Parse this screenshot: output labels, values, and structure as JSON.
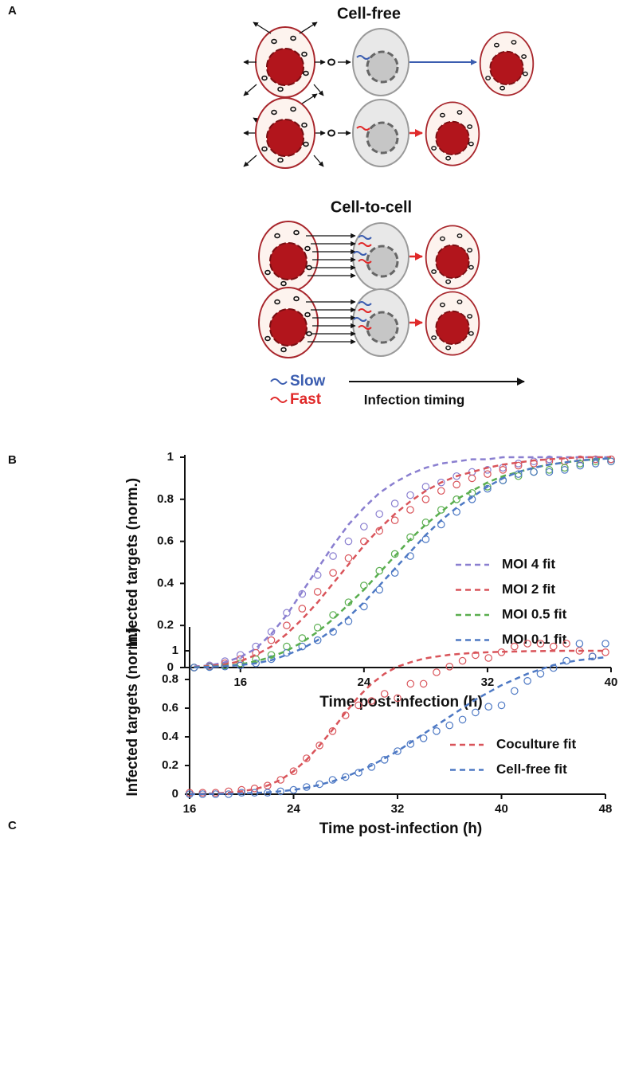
{
  "diagram": {
    "panel": "A",
    "cell_free_title": "Cell-free",
    "cell_to_cell_title": "Cell-to-cell",
    "slow": "Slow",
    "fast": "Fast",
    "timeline": "Infection timing"
  },
  "chart_data": [
    {
      "type": "line",
      "panel": "B",
      "x_label": "Time post-infection (h)",
      "y_label": "Infected targets (norm.)",
      "x": [
        13,
        14,
        15,
        16,
        17,
        18,
        19,
        20,
        21,
        22,
        23,
        24,
        25,
        26,
        27,
        28,
        29,
        30,
        31,
        32,
        33,
        34,
        35,
        36,
        37,
        38,
        39,
        40
      ],
      "xlim": [
        12.4,
        40
      ],
      "xticks": [
        16,
        24,
        32,
        40
      ],
      "ylim": [
        0,
        1
      ],
      "yticks": [
        0,
        0.2,
        0.4,
        0.6,
        0.8,
        1
      ],
      "legend": "center right",
      "series": [
        {
          "name": "MOI 4 fit",
          "color": "#8a7fd0",
          "values": [
            0.005,
            0.01,
            0.025,
            0.05,
            0.09,
            0.16,
            0.25,
            0.36,
            0.47,
            0.58,
            0.68,
            0.76,
            0.83,
            0.88,
            0.92,
            0.95,
            0.97,
            0.98,
            0.99,
            0.99,
            1,
            1,
            1,
            1,
            1,
            1,
            1,
            1
          ],
          "points": [
            0,
            0.01,
            0.03,
            0.06,
            0.1,
            0.17,
            0.26,
            0.35,
            0.44,
            0.53,
            0.6,
            0.67,
            0.73,
            0.78,
            0.82,
            0.86,
            0.88,
            0.91,
            0.93,
            0.94,
            0.95,
            0.97,
            0.98,
            0.99,
            0.98,
            0.99,
            0.99,
            0.99
          ]
        },
        {
          "name": "MOI 2 fit",
          "color": "#d9545a",
          "values": [
            0.003,
            0.007,
            0.015,
            0.03,
            0.06,
            0.1,
            0.16,
            0.23,
            0.31,
            0.4,
            0.49,
            0.58,
            0.66,
            0.73,
            0.79,
            0.84,
            0.88,
            0.91,
            0.93,
            0.95,
            0.965,
            0.975,
            0.985,
            0.99,
            0.995,
            1,
            1,
            1
          ],
          "points": [
            0,
            0.005,
            0.02,
            0.04,
            0.07,
            0.13,
            0.2,
            0.28,
            0.36,
            0.45,
            0.52,
            0.6,
            0.65,
            0.7,
            0.75,
            0.8,
            0.84,
            0.87,
            0.9,
            0.92,
            0.94,
            0.96,
            0.97,
            0.98,
            0.98,
            0.99,
            0.99,
            0.99
          ]
        },
        {
          "name": "MOI 0.5 fit",
          "color": "#5aae4f",
          "values": [
            0.002,
            0.004,
            0.008,
            0.015,
            0.03,
            0.05,
            0.08,
            0.12,
            0.17,
            0.23,
            0.3,
            0.37,
            0.45,
            0.53,
            0.61,
            0.68,
            0.74,
            0.8,
            0.84,
            0.88,
            0.91,
            0.93,
            0.95,
            0.965,
            0.975,
            0.985,
            0.99,
            0.995
          ],
          "points": [
            0,
            0.003,
            0.01,
            0.02,
            0.04,
            0.06,
            0.1,
            0.14,
            0.19,
            0.25,
            0.31,
            0.39,
            0.46,
            0.54,
            0.62,
            0.69,
            0.75,
            0.8,
            0.83,
            0.86,
            0.89,
            0.91,
            0.93,
            0.94,
            0.95,
            0.97,
            0.98,
            0.98
          ]
        },
        {
          "name": "MOI 0.1 fit",
          "color": "#4e79c4",
          "values": [
            0.001,
            0.003,
            0.006,
            0.012,
            0.02,
            0.035,
            0.06,
            0.09,
            0.13,
            0.18,
            0.24,
            0.31,
            0.39,
            0.47,
            0.55,
            0.63,
            0.7,
            0.76,
            0.81,
            0.86,
            0.9,
            0.93,
            0.95,
            0.965,
            0.975,
            0.985,
            0.99,
            0.995
          ],
          "points": [
            0,
            0.002,
            0.005,
            0.01,
            0.02,
            0.04,
            0.07,
            0.1,
            0.13,
            0.17,
            0.22,
            0.29,
            0.37,
            0.45,
            0.53,
            0.61,
            0.68,
            0.74,
            0.8,
            0.85,
            0.89,
            0.92,
            0.93,
            0.93,
            0.94,
            0.96,
            0.97,
            0.98
          ]
        }
      ]
    },
    {
      "type": "line",
      "panel": "C",
      "x_label": "Time post-infection (h)",
      "y_label": "Infected targets (norm.)",
      "x": [
        16,
        17,
        18,
        19,
        20,
        21,
        22,
        23,
        24,
        25,
        26,
        27,
        28,
        29,
        30,
        31,
        32,
        33,
        34,
        35,
        36,
        37,
        38,
        39,
        40,
        41,
        42,
        43,
        44,
        45,
        46,
        47,
        48
      ],
      "xlim": [
        16,
        48
      ],
      "xticks": [
        16,
        24,
        32,
        40,
        48
      ],
      "ylim": [
        0,
        1.15
      ],
      "yticks": [
        0,
        0.2,
        0.4,
        0.6,
        0.8,
        1
      ],
      "legend": "lower right",
      "series": [
        {
          "name": "Coculture fit",
          "color": "#d9545a",
          "values": [
            0.002,
            0.003,
            0.005,
            0.01,
            0.02,
            0.035,
            0.06,
            0.1,
            0.16,
            0.24,
            0.34,
            0.45,
            0.57,
            0.68,
            0.77,
            0.84,
            0.89,
            0.92,
            0.945,
            0.96,
            0.972,
            0.98,
            0.986,
            0.99,
            0.993,
            0.995,
            0.997,
            0.998,
            0.999,
            1,
            1,
            1,
            1
          ],
          "points": [
            0.01,
            0.01,
            0.01,
            0.02,
            0.03,
            0.04,
            0.06,
            0.1,
            0.16,
            0.25,
            0.34,
            0.44,
            0.55,
            0.62,
            0.65,
            0.7,
            0.67,
            0.77,
            0.77,
            0.85,
            0.89,
            0.93,
            0.97,
            0.95,
            0.99,
            1.03,
            1.05,
            1.05,
            1.03,
            1.05,
            1,
            0.96,
            0.99
          ]
        },
        {
          "name": "Cell-free fit",
          "color": "#4e79c4",
          "values": [
            0,
            0.001,
            0.002,
            0.003,
            0.005,
            0.008,
            0.013,
            0.02,
            0.03,
            0.045,
            0.065,
            0.09,
            0.12,
            0.16,
            0.2,
            0.25,
            0.3,
            0.36,
            0.42,
            0.48,
            0.54,
            0.6,
            0.66,
            0.71,
            0.76,
            0.8,
            0.84,
            0.87,
            0.9,
            0.92,
            0.935,
            0.945,
            0.955
          ],
          "points": [
            0,
            0,
            0,
            0,
            0.01,
            0.01,
            0.01,
            0.02,
            0.03,
            0.05,
            0.07,
            0.1,
            0.12,
            0.15,
            0.19,
            0.24,
            0.3,
            0.35,
            0.39,
            0.44,
            0.48,
            0.52,
            0.57,
            0.61,
            0.62,
            0.72,
            0.79,
            0.84,
            0.88,
            0.93,
            1.05,
            0.96,
            1.05
          ]
        }
      ]
    }
  ]
}
